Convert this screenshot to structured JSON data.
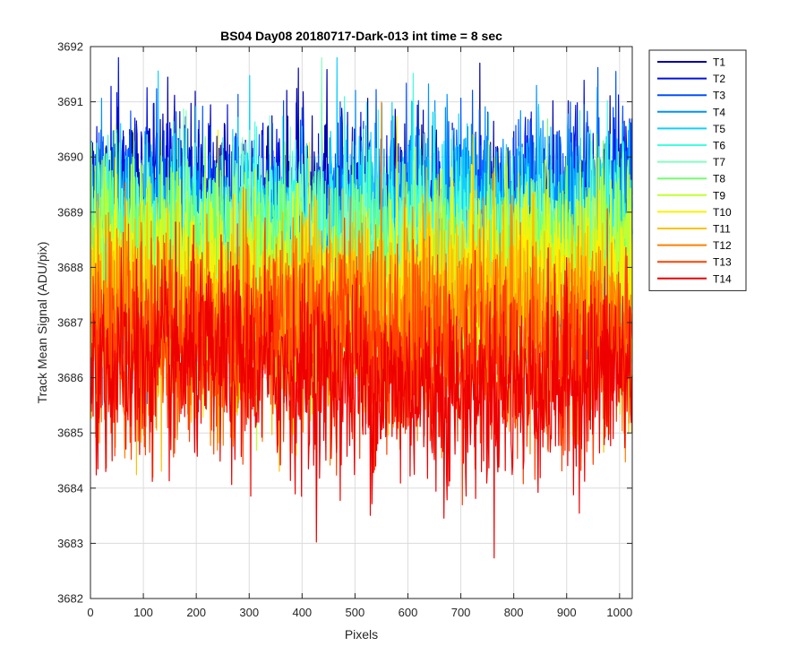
{
  "chart_data": {
    "type": "line",
    "title": "BS04 Day08 20180717-Dark-013 int time = 8 sec",
    "xlabel": "Pixels",
    "ylabel": "Track Mean Signal (ADU/pix)",
    "xlim": [
      0,
      1024
    ],
    "ylim": [
      3682,
      3692
    ],
    "xticks": [
      0,
      100,
      200,
      300,
      400,
      500,
      600,
      700,
      800,
      900,
      1000
    ],
    "yticks": [
      3682,
      3683,
      3684,
      3685,
      3686,
      3687,
      3688,
      3689,
      3690,
      3691,
      3692
    ],
    "grid": true,
    "legend_position": "outside-top-right",
    "n_points": 1024,
    "noise_amplitude": 0.9,
    "series": [
      {
        "name": "T1",
        "color": "#0000AA",
        "mean": 3689.0
      },
      {
        "name": "T2",
        "color": "#0010DD",
        "mean": 3688.9
      },
      {
        "name": "T3",
        "color": "#0050FF",
        "mean": 3688.8
      },
      {
        "name": "T4",
        "color": "#0090FF",
        "mean": 3688.7
      },
      {
        "name": "T5",
        "color": "#10D0FF",
        "mean": 3688.6
      },
      {
        "name": "T6",
        "color": "#40FFE0",
        "mean": 3688.4
      },
      {
        "name": "T7",
        "color": "#80FFC0",
        "mean": 3688.2
      },
      {
        "name": "T8",
        "color": "#70FF70",
        "mean": 3688.0
      },
      {
        "name": "T9",
        "color": "#C0FF30",
        "mean": 3687.8
      },
      {
        "name": "T10",
        "color": "#FFF000",
        "mean": 3687.5
      },
      {
        "name": "T11",
        "color": "#FFC000",
        "mean": 3687.2
      },
      {
        "name": "T12",
        "color": "#FF8000",
        "mean": 3686.9
      },
      {
        "name": "T13",
        "color": "#FF4000",
        "mean": 3686.5
      },
      {
        "name": "T14",
        "color": "#EE0000",
        "mean": 3686.0
      }
    ]
  }
}
